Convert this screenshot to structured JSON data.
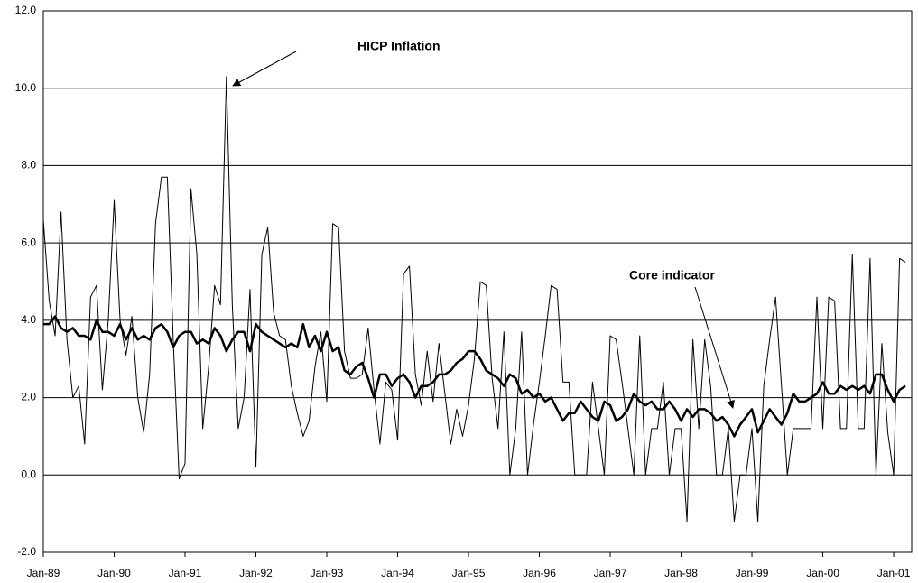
{
  "chart_data": {
    "type": "line",
    "categories": [
      "Jan-89",
      null,
      null,
      null,
      null,
      null,
      null,
      null,
      null,
      null,
      null,
      null,
      "Jan-90",
      null,
      null,
      null,
      null,
      null,
      null,
      null,
      null,
      null,
      null,
      null,
      "Jan-91",
      null,
      null,
      null,
      null,
      null,
      null,
      null,
      null,
      null,
      null,
      null,
      "Jan-92",
      null,
      null,
      null,
      null,
      null,
      null,
      null,
      null,
      null,
      null,
      null,
      "Jan-93",
      null,
      null,
      null,
      null,
      null,
      null,
      null,
      null,
      null,
      null,
      null,
      "Jan-94",
      null,
      null,
      null,
      null,
      null,
      null,
      null,
      null,
      null,
      null,
      null,
      "Jan-95",
      null,
      null,
      null,
      null,
      null,
      null,
      null,
      null,
      null,
      null,
      null,
      "Jan-96",
      null,
      null,
      null,
      null,
      null,
      null,
      null,
      null,
      null,
      null,
      null,
      "Jan-97",
      null,
      null,
      null,
      null,
      null,
      null,
      null,
      null,
      null,
      null,
      null,
      "Jan-98",
      null,
      null,
      null,
      null,
      null,
      null,
      null,
      null,
      null,
      null,
      null,
      "Jan-99",
      null,
      null,
      null,
      null,
      null,
      null,
      null,
      null,
      null,
      null,
      null,
      "Jan-00",
      null,
      null,
      null,
      null,
      null,
      null,
      null,
      null,
      null,
      null,
      null,
      "Jan-01",
      null,
      null
    ],
    "series": [
      {
        "name": "HICP Inflation",
        "color": "#000000",
        "width": 1,
        "values": [
          6.6,
          4.5,
          3.6,
          6.8,
          3.5,
          2.0,
          2.3,
          0.8,
          4.6,
          4.9,
          2.2,
          4.0,
          7.1,
          4.0,
          3.1,
          4.1,
          2.0,
          1.1,
          2.6,
          6.5,
          7.7,
          7.7,
          3.5,
          -0.1,
          0.3,
          7.4,
          5.7,
          1.2,
          2.8,
          4.9,
          4.4,
          10.3,
          4.4,
          1.2,
          2.0,
          4.8,
          0.2,
          5.7,
          6.4,
          4.2,
          3.6,
          3.5,
          2.3,
          1.6,
          1.0,
          1.4,
          2.8,
          3.7,
          1.9,
          6.5,
          6.4,
          3.2,
          2.5,
          2.5,
          2.6,
          3.8,
          2.2,
          0.8,
          2.4,
          2.2,
          0.9,
          5.2,
          5.4,
          2.6,
          1.8,
          3.2,
          1.9,
          3.4,
          2.1,
          0.8,
          1.7,
          1.0,
          1.8,
          3.0,
          5.0,
          4.9,
          2.5,
          1.2,
          3.7,
          0.0,
          1.2,
          3.7,
          0.0,
          1.3,
          2.4,
          3.6,
          4.9,
          4.8,
          2.4,
          2.4,
          0.0,
          0.0,
          0.0,
          2.4,
          1.2,
          0.0,
          3.6,
          3.5,
          2.4,
          1.2,
          0.0,
          3.6,
          0.0,
          1.2,
          1.2,
          2.4,
          0.0,
          1.2,
          1.2,
          -1.2,
          3.5,
          1.2,
          3.5,
          2.3,
          0.0,
          0.0,
          1.2,
          -1.2,
          0.0,
          0.0,
          1.2,
          -1.2,
          2.3,
          3.5,
          4.6,
          2.3,
          0.0,
          1.2,
          1.2,
          1.2,
          1.2,
          4.6,
          1.2,
          4.6,
          4.5,
          1.2,
          1.2,
          5.7,
          1.2,
          1.2,
          5.6,
          0.0,
          3.4,
          1.1,
          0.0,
          5.6,
          5.5
        ]
      },
      {
        "name": "Core indicator",
        "color": "#000000",
        "width": 2.5,
        "values": [
          3.9,
          3.9,
          4.1,
          3.8,
          3.7,
          3.8,
          3.6,
          3.6,
          3.5,
          4.0,
          3.7,
          3.7,
          3.6,
          3.9,
          3.5,
          3.8,
          3.5,
          3.6,
          3.5,
          3.8,
          3.9,
          3.7,
          3.3,
          3.6,
          3.7,
          3.7,
          3.4,
          3.5,
          3.4,
          3.8,
          3.6,
          3.2,
          3.5,
          3.7,
          3.7,
          3.2,
          3.9,
          3.7,
          3.6,
          3.5,
          3.4,
          3.3,
          3.4,
          3.3,
          3.9,
          3.3,
          3.6,
          3.2,
          3.7,
          3.2,
          3.3,
          2.7,
          2.6,
          2.8,
          2.9,
          2.5,
          2.0,
          2.6,
          2.6,
          2.3,
          2.5,
          2.6,
          2.4,
          2.0,
          2.3,
          2.3,
          2.4,
          2.6,
          2.6,
          2.7,
          2.9,
          3.0,
          3.2,
          3.2,
          3.0,
          2.7,
          2.6,
          2.5,
          2.3,
          2.6,
          2.5,
          2.1,
          2.2,
          2.0,
          2.1,
          1.9,
          2.0,
          1.7,
          1.4,
          1.6,
          1.6,
          1.9,
          1.7,
          1.5,
          1.4,
          1.9,
          1.8,
          1.4,
          1.5,
          1.7,
          2.1,
          1.9,
          1.8,
          1.9,
          1.7,
          1.7,
          1.9,
          1.7,
          1.4,
          1.7,
          1.5,
          1.7,
          1.7,
          1.6,
          1.4,
          1.5,
          1.3,
          1.0,
          1.3,
          1.5,
          1.7,
          1.1,
          1.4,
          1.7,
          1.5,
          1.3,
          1.6,
          2.1,
          1.9,
          1.9,
          2.0,
          2.1,
          2.4,
          2.1,
          2.1,
          2.3,
          2.2,
          2.3,
          2.2,
          2.3,
          2.1,
          2.6,
          2.6,
          2.2,
          1.9,
          2.2,
          2.3
        ]
      }
    ],
    "ylim": [
      -2,
      12
    ],
    "yticks": [
      {
        "value": -2,
        "label": "-2.0"
      },
      {
        "value": 0,
        "label": "0.0"
      },
      {
        "value": 2,
        "label": "2.0"
      },
      {
        "value": 4,
        "label": "4.0"
      },
      {
        "value": 6,
        "label": "6.0"
      },
      {
        "value": 8,
        "label": "8.0"
      },
      {
        "value": 10,
        "label": "10.0"
      },
      {
        "value": 12,
        "label": "12.0"
      }
    ],
    "grid": true
  }
}
